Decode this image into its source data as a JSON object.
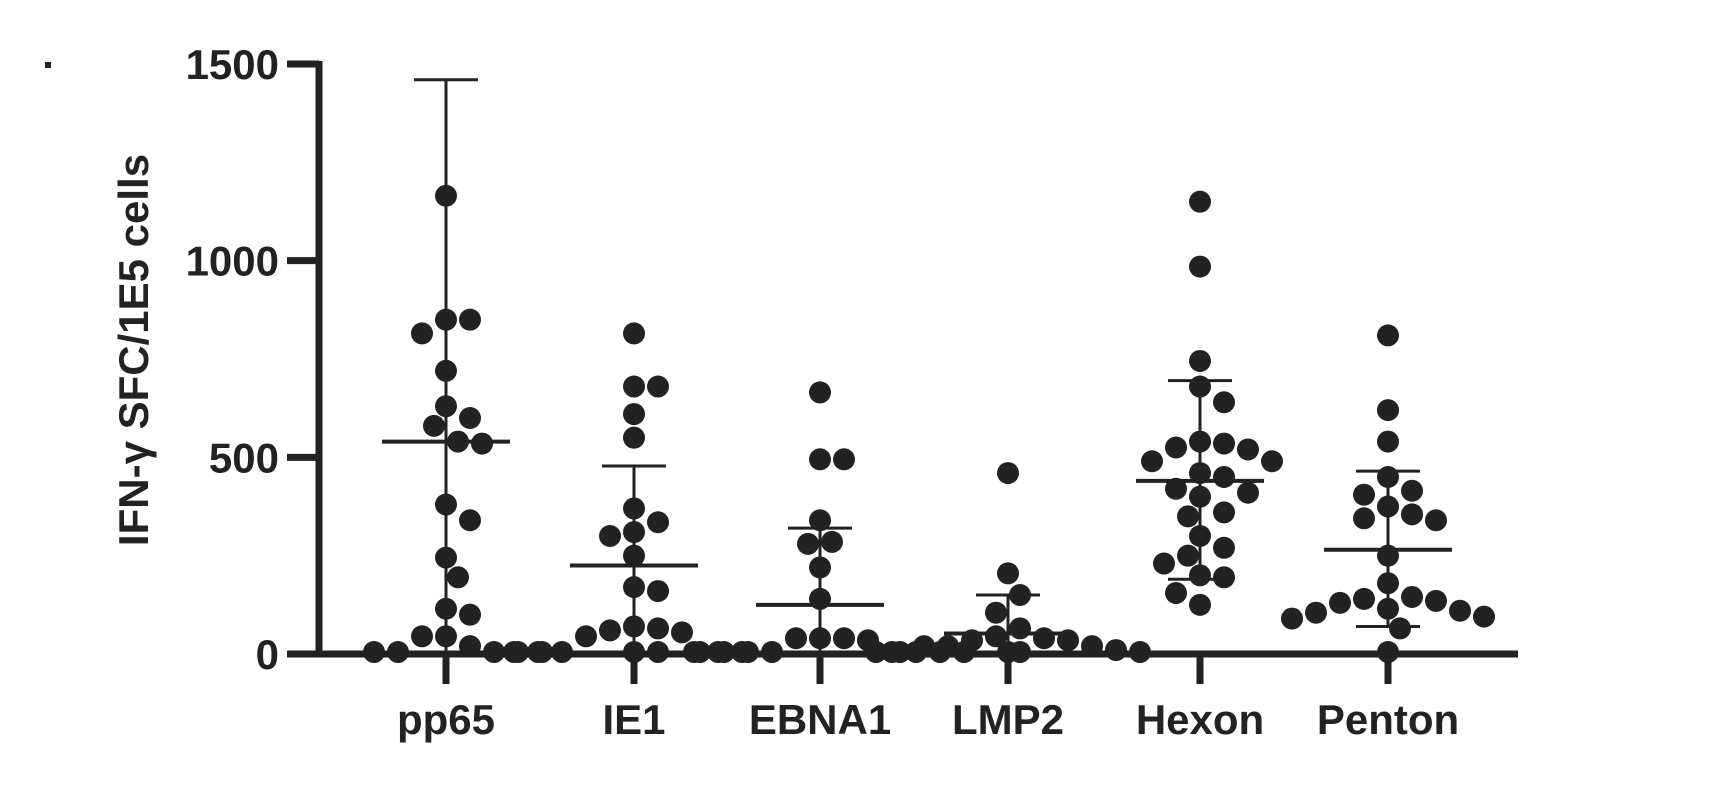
{
  "chart_data": {
    "type": "scatter",
    "subtype": "dot-plot-with-mean-and-sd",
    "ylabel": "IFN-γ SFC/1E5 cells",
    "ylim": [
      0,
      1500
    ],
    "yticks": [
      0,
      500,
      1000,
      1500
    ],
    "categories": [
      "pp65",
      "IE1",
      "EBNA1",
      "LMP2",
      "Hexon",
      "Penton"
    ],
    "colors": {
      "marker": "#222222",
      "axis": "#222222"
    },
    "series": [
      {
        "category": "pp65",
        "mean": 540,
        "sd_upper": 1460,
        "sd_lower": 0,
        "points": [
          1165,
          850,
          850,
          815,
          720,
          630,
          600,
          580,
          540,
          535,
          380,
          340,
          245,
          195,
          115,
          100,
          45,
          45,
          20,
          5,
          5,
          5,
          5,
          5
        ]
      },
      {
        "category": "IE1",
        "mean": 225,
        "sd_upper": 478,
        "sd_lower": 0,
        "points": [
          815,
          680,
          680,
          610,
          550,
          370,
          335,
          310,
          300,
          250,
          170,
          160,
          65,
          60,
          55,
          45,
          70,
          5,
          5,
          5,
          5,
          5,
          5,
          5,
          5
        ]
      },
      {
        "category": "EBNA1",
        "mean": 125,
        "sd_upper": 320,
        "sd_lower": 0,
        "points": [
          665,
          495,
          495,
          340,
          285,
          280,
          220,
          140,
          40,
          40,
          40,
          35,
          5,
          5,
          5,
          5,
          5,
          5,
          5,
          5
        ]
      },
      {
        "category": "LMP2",
        "mean": 52,
        "sd_upper": 150,
        "sd_lower": 0,
        "points": [
          460,
          205,
          150,
          105,
          65,
          45,
          40,
          35,
          35,
          20,
          20,
          20,
          10,
          5,
          5,
          5,
          5,
          5
        ]
      },
      {
        "category": "Hexon",
        "mean": 440,
        "sd_upper": 695,
        "sd_lower": 190,
        "points": [
          1150,
          985,
          745,
          680,
          640,
          540,
          535,
          525,
          520,
          490,
          490,
          460,
          450,
          420,
          410,
          400,
          360,
          350,
          300,
          270,
          250,
          230,
          200,
          195,
          155,
          125
        ]
      },
      {
        "category": "Penton",
        "mean": 265,
        "sd_upper": 465,
        "sd_lower": 70,
        "points": [
          810,
          620,
          540,
          450,
          415,
          405,
          375,
          355,
          345,
          340,
          250,
          180,
          145,
          140,
          135,
          130,
          115,
          110,
          105,
          95,
          90,
          65,
          5
        ]
      }
    ]
  }
}
